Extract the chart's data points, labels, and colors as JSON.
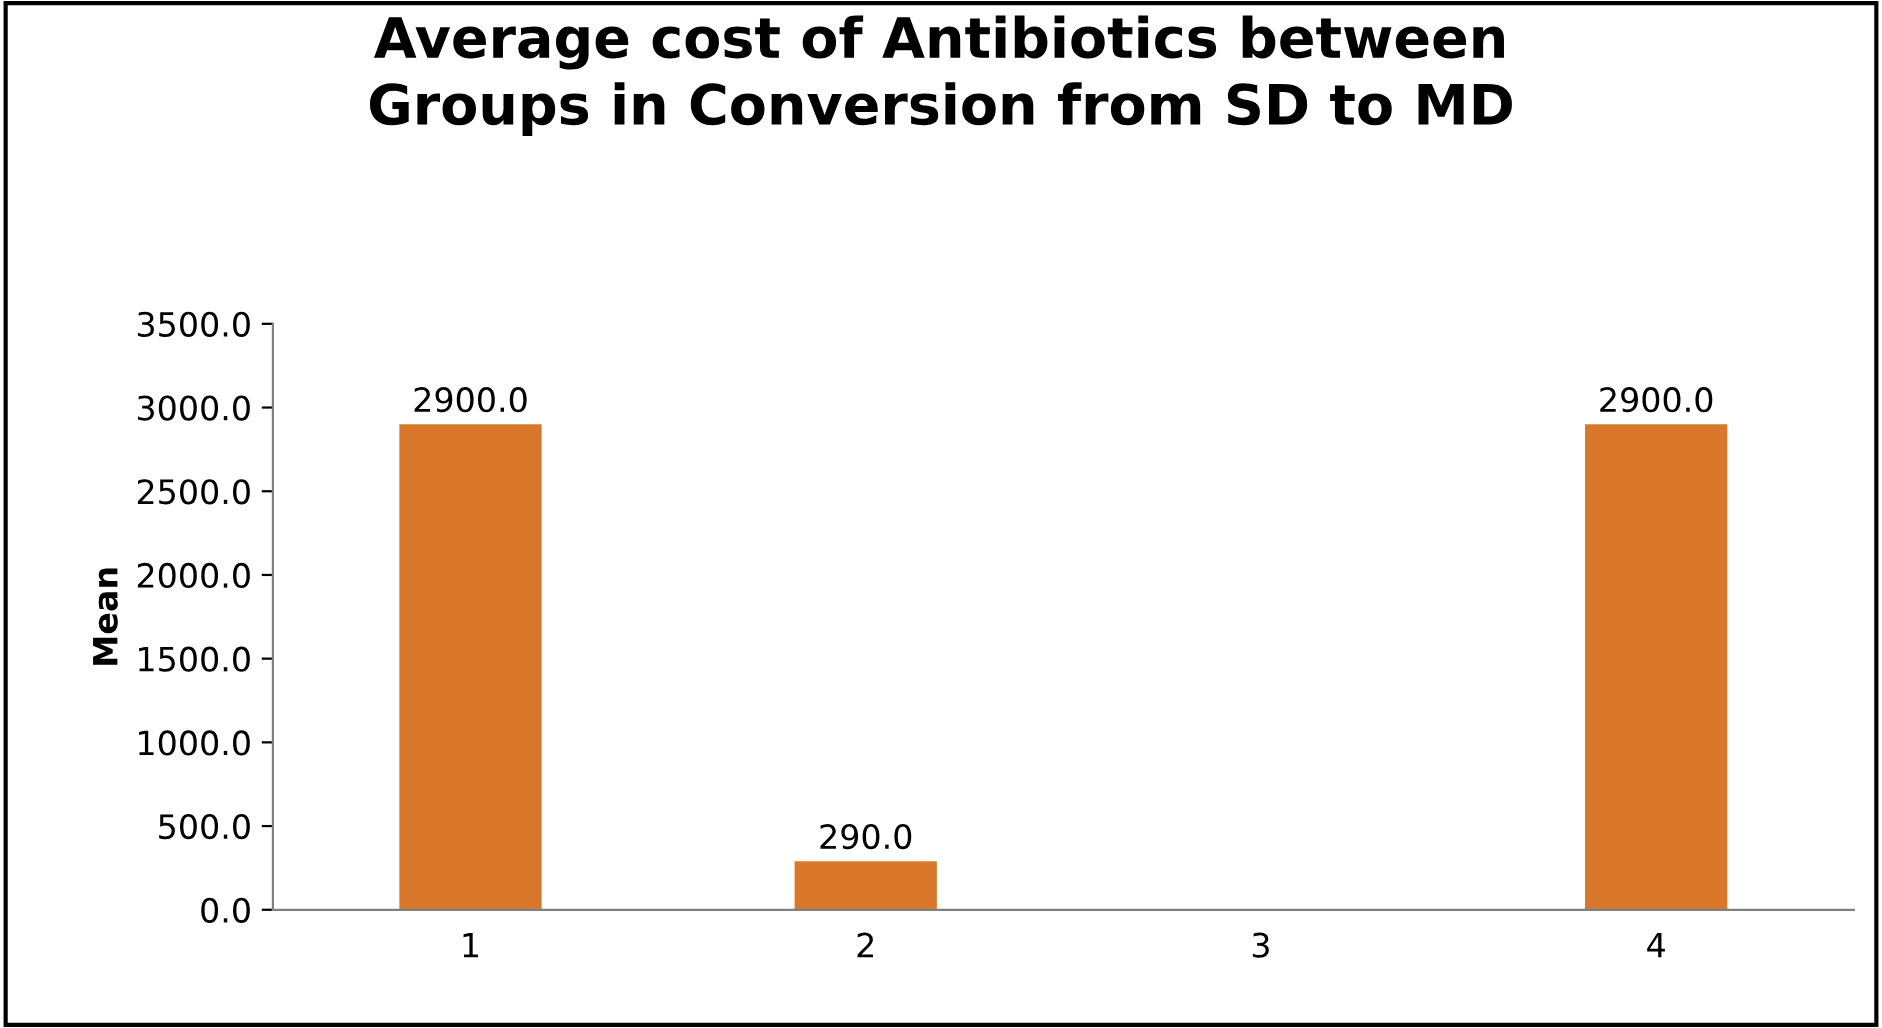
{
  "chart_data": {
    "type": "bar",
    "title": "Average cost of Antibiotics between\nGroups in Conversion from SD to MD",
    "ylabel": "Mean",
    "categories": [
      "1",
      "2",
      "3",
      "4"
    ],
    "values": [
      2900,
      290,
      0,
      2900
    ],
    "color": "#d9782a",
    "value_labels": [
      "2900.0",
      "290.0",
      null,
      "2900.0"
    ],
    "ylim": [
      0,
      3500
    ],
    "yticks": [
      {
        "value": 0,
        "label": "0.0"
      },
      {
        "value": 500,
        "label": "500.0"
      },
      {
        "value": 1000,
        "label": "1000.0"
      },
      {
        "value": 1500,
        "label": "1500.0"
      },
      {
        "value": 2000,
        "label": "2000.0"
      },
      {
        "value": 2500,
        "label": "2500.0"
      },
      {
        "value": 3000,
        "label": "3000.0"
      },
      {
        "value": 3500,
        "label": "3500.0"
      }
    ],
    "grid": false
  }
}
